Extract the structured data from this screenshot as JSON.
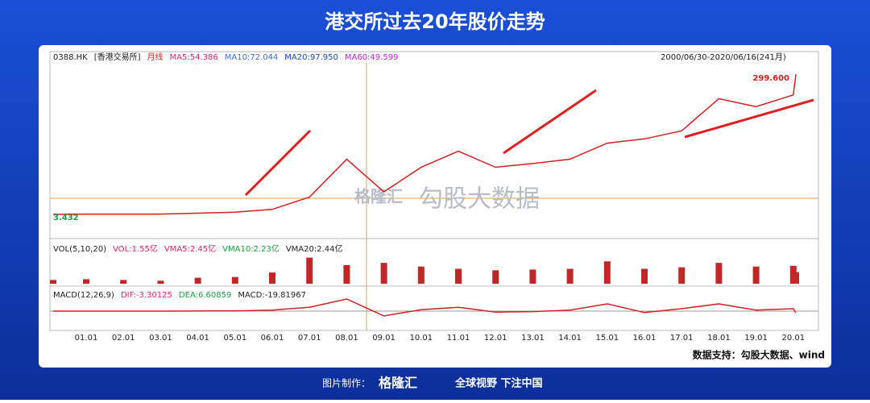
{
  "header": {
    "title": "港交所过去20年股价走势",
    "date_range": "2000/06/30-2020/06/16(241月)"
  },
  "source": "数据支持：勾股大数据、wind",
  "watermark": {
    "brand": "格隆汇",
    "data": "勾股大数据"
  },
  "footer": {
    "made_by": "图片制作：",
    "brand": "格隆汇",
    "slogan": "全球视野 下注中国"
  },
  "chart_data": [
    {
      "type": "line",
      "symbol": "0388.HK",
      "exchange": "[香港交易所]",
      "period": "月线",
      "indicators": [
        {
          "text": "MA5:54.386",
          "color": "#e0245e"
        },
        {
          "text": "MA10:72.044",
          "color": "#3b6fd8"
        },
        {
          "text": "MA20:97.950",
          "color": "#1a45c0"
        },
        {
          "text": "MA60:49.599",
          "color": "#c020e0"
        }
      ],
      "categories": [
        null,
        "01.01",
        "02.01",
        "03.01",
        "04.01",
        "05.01",
        "06.01",
        "07.01",
        "08.01",
        "09.01",
        "10.01",
        "11.01",
        "12.01",
        "13.01",
        "14.01",
        "15.01",
        "16.01",
        "17.01",
        "18.01",
        "19.01",
        "20.01",
        null
      ],
      "values": [
        3.432,
        4,
        4,
        4,
        6,
        8,
        14,
        40,
        120,
        51,
        103,
        137,
        103,
        111,
        120,
        154,
        163,
        180,
        248,
        231,
        256,
        299.6
      ],
      "value_labels": [
        "3.432",
        null,
        null,
        null,
        null,
        null,
        null,
        null,
        null,
        null,
        null,
        null,
        null,
        null,
        null,
        null,
        null,
        null,
        null,
        null,
        null,
        "299.600"
      ],
      "color": "#d42020",
      "ylim": [
        0,
        310
      ]
    },
    {
      "type": "bar",
      "title": "VOL(5,10,20)",
      "indicators": [
        {
          "text": "VOL:1.55亿",
          "color": "#e0245e"
        },
        {
          "text": "VMA5:2.45亿",
          "color": "#e0245e"
        },
        {
          "text": "VMA10:2.23亿",
          "color": "#18a040"
        },
        {
          "text": "VMA20:2.44亿",
          "color": "#222222"
        }
      ],
      "values": [
        0.5,
        0.6,
        0.5,
        0.4,
        0.8,
        0.9,
        1.5,
        3.5,
        2.5,
        2.8,
        2.3,
        2,
        1.8,
        1.9,
        2,
        3,
        2,
        2.2,
        2.8,
        2.3,
        2.4,
        1.55
      ],
      "color": "#c02828",
      "ylim": [
        0,
        4
      ]
    },
    {
      "type": "line",
      "title": "MACD(12,26,9)",
      "indicators": [
        {
          "text": "DIF:-3.30125",
          "color": "#e0245e"
        },
        {
          "text": "DEA:6.60859",
          "color": "#18a040"
        },
        {
          "text": "MACD:-19.81967",
          "color": "#222222"
        }
      ],
      "values": [
        0,
        0.1,
        0,
        -0.1,
        0.3,
        0.5,
        2,
        8,
        25,
        -10,
        3,
        8,
        -2,
        -1,
        2,
        15,
        -3,
        5,
        15,
        2,
        5,
        -3.30125
      ],
      "color": "#d42020",
      "ylim": [
        -30,
        40
      ]
    }
  ]
}
